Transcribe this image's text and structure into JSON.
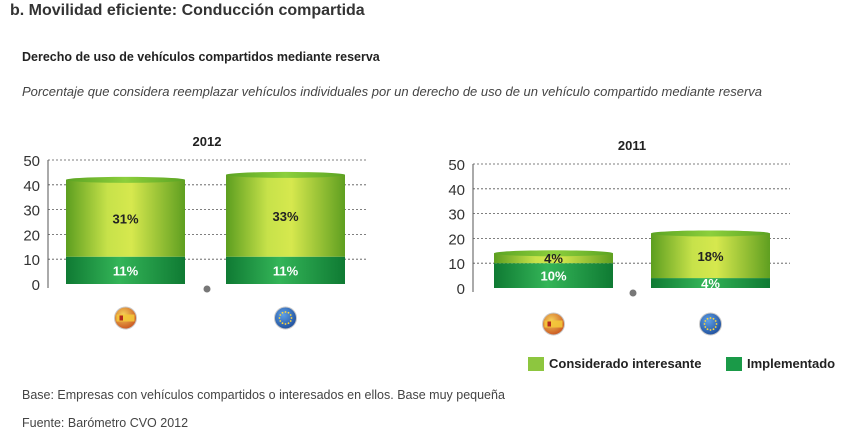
{
  "page": {
    "title": "b. Movilidad eficiente: Conducción compartida",
    "subtitle": "Derecho de uso de vehículos compartidos mediante reserva",
    "description": "Porcentaje que considera reemplazar vehículos individuales por un derecho de uso de un vehículo compartido mediante reserva",
    "base_note": "Base: Empresas con vehículos compartidos o interesados en ellos. Base muy pequeña",
    "source_note": "Fuente: Barómetro CVO 2012"
  },
  "colors": {
    "considerado_interesante": "#8dc63f",
    "implementado": "#1a9a48"
  },
  "chart_data": [
    {
      "type": "bar",
      "stacked": true,
      "title": "2012",
      "categories": [
        "España",
        "Europa"
      ],
      "category_icons": [
        "spain-flag-icon",
        "eu-flag-icon"
      ],
      "ylim": [
        0,
        50
      ],
      "yticks": [
        0,
        10,
        20,
        30,
        40,
        50
      ],
      "grid": true,
      "series": [
        {
          "name": "Implementado",
          "values": [
            11,
            11
          ],
          "labels": [
            "11%",
            "11%"
          ]
        },
        {
          "name": "Considerado interesante",
          "values": [
            31,
            33
          ],
          "labels": [
            "31%",
            "33%"
          ]
        }
      ]
    },
    {
      "type": "bar",
      "stacked": true,
      "title": "2011",
      "categories": [
        "España",
        "Europa"
      ],
      "category_icons": [
        "spain-flag-icon",
        "eu-flag-icon"
      ],
      "ylim": [
        0,
        50
      ],
      "yticks": [
        0,
        10,
        20,
        30,
        40,
        50
      ],
      "grid": true,
      "series": [
        {
          "name": "Implementado",
          "values": [
            10,
            4
          ],
          "labels": [
            "10%",
            "4%"
          ]
        },
        {
          "name": "Considerado interesante",
          "values": [
            4,
            18
          ],
          "labels": [
            "4%",
            "18%"
          ]
        }
      ]
    }
  ],
  "legend": {
    "placement": "bottom-right",
    "items": [
      {
        "label": "Considerado interesante",
        "color": "#8dc63f"
      },
      {
        "label": "Implementado",
        "color": "#1a9a48"
      }
    ]
  }
}
